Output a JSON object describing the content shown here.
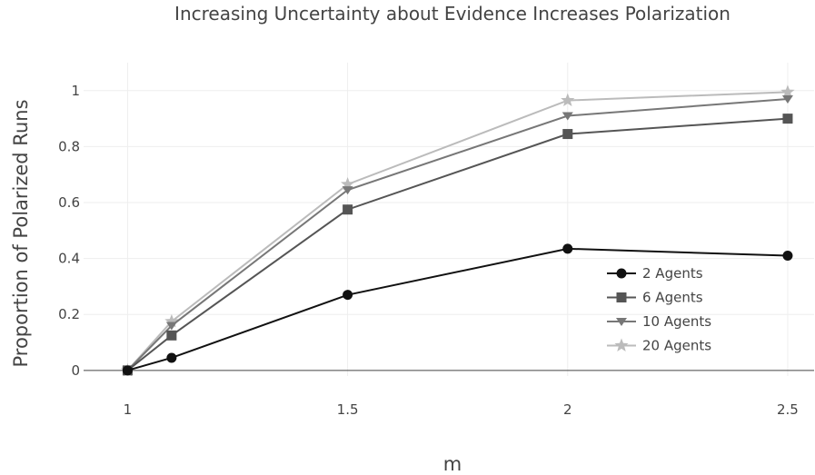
{
  "chart_data": {
    "type": "line",
    "title": "Increasing Uncertainty about Evidence Increases Polarization",
    "xlabel": "m",
    "ylabel": "Proportion of Polarized Runs",
    "xlim": [
      0.9,
      2.56
    ],
    "ylim": [
      -0.02,
      1.1
    ],
    "x_ticks": [
      1,
      1.5,
      2,
      2.5
    ],
    "x_tick_labels": [
      "1",
      "1.5",
      "2",
      "2.5"
    ],
    "y_ticks": [
      0,
      0.2,
      0.4,
      0.6,
      0.8,
      1
    ],
    "y_tick_labels": [
      "0",
      "0.2",
      "0.4",
      "0.6",
      "0.8",
      "1"
    ],
    "grid": true,
    "legend_position": "bottom-right",
    "x": [
      1,
      1.1,
      1.5,
      2,
      2.5
    ],
    "series": [
      {
        "name": "2 Agents",
        "values": [
          0,
          0.045,
          0.27,
          0.435,
          0.41
        ],
        "color": "#111111",
        "marker": "circle"
      },
      {
        "name": "6 Agents",
        "values": [
          0,
          0.125,
          0.575,
          0.845,
          0.9
        ],
        "color": "#555555",
        "marker": "square"
      },
      {
        "name": "10 Agents",
        "values": [
          0,
          0.16,
          0.645,
          0.91,
          0.97
        ],
        "color": "#777777",
        "marker": "triangle-down"
      },
      {
        "name": "20 Agents",
        "values": [
          0,
          0.175,
          0.665,
          0.965,
          0.995
        ],
        "color": "#bbbbbb",
        "marker": "star"
      }
    ]
  }
}
